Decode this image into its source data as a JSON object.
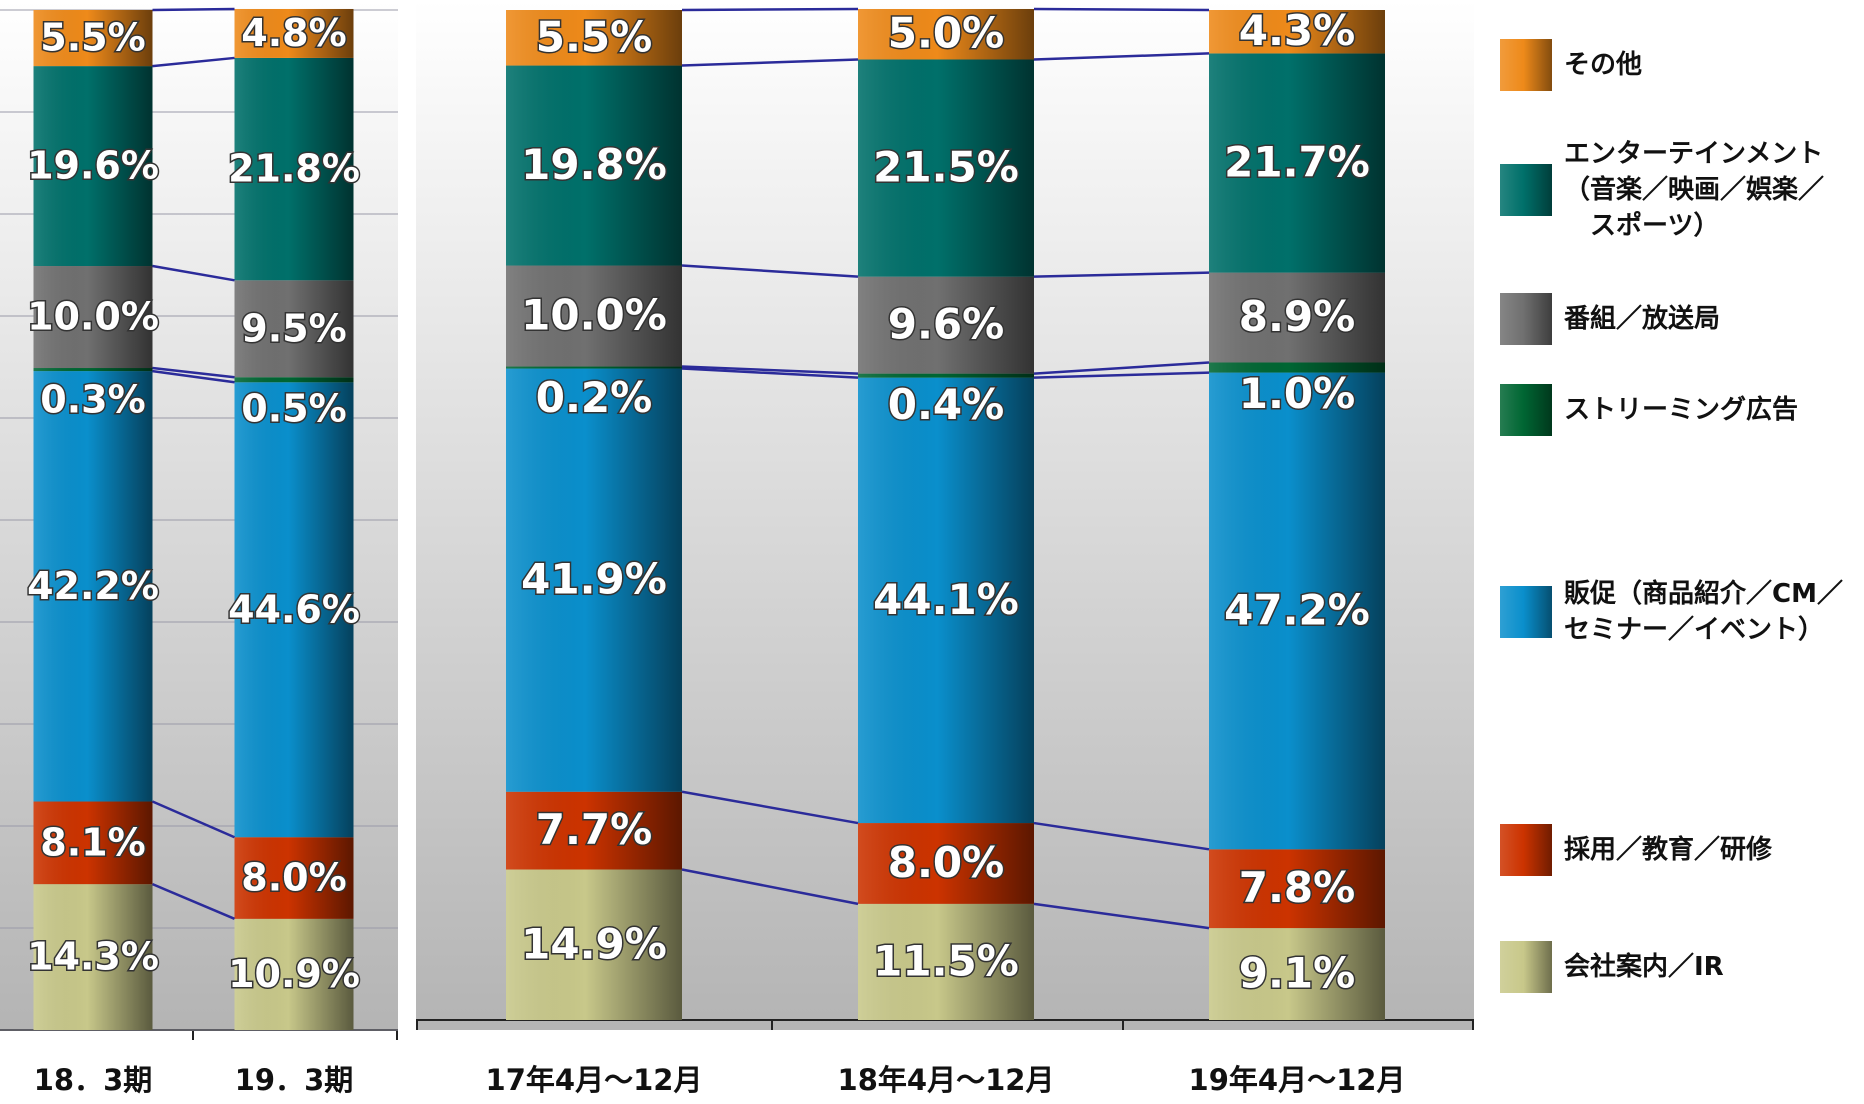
{
  "chart_data": [
    {
      "type": "bar",
      "stacked": true,
      "categories": [
        "18．3期",
        "19．3期"
      ],
      "ylim": [
        0,
        100
      ],
      "yticks": [
        0,
        10,
        20,
        30,
        40,
        50,
        60,
        70,
        80,
        90,
        100
      ],
      "grid": true,
      "series": [
        {
          "color": "#c8c88a",
          "values": [
            14.3,
            10.9
          ],
          "value_labels": [
            "14.3%",
            "10.9%"
          ]
        },
        {
          "color": "#cc3300",
          "values": [
            8.1,
            8.0
          ],
          "value_labels": [
            "8.1%",
            "8.0%"
          ]
        },
        {
          "color": "#0a8fcc",
          "values": [
            42.2,
            44.6
          ],
          "value_labels": [
            "42.2%",
            "44.6%"
          ]
        },
        {
          "color": "#006633",
          "values": [
            0.3,
            0.5
          ],
          "value_labels": [
            "0.3%",
            "0.5%"
          ]
        },
        {
          "color": "#707070",
          "values": [
            10.0,
            9.5
          ],
          "value_labels": [
            "10.0%",
            "9.5%"
          ]
        },
        {
          "color": "#00706a",
          "values": [
            19.6,
            21.8
          ],
          "value_labels": [
            "19.6%",
            "21.8%"
          ]
        },
        {
          "color": "#ee8a1a",
          "values": [
            5.5,
            4.8
          ],
          "value_labels": [
            "5.5%",
            "4.8%"
          ]
        }
      ]
    },
    {
      "type": "bar",
      "stacked": true,
      "categories": [
        "17年4月～12月",
        "18年4月～12月",
        "19年4月～12月"
      ],
      "ylim": [
        0,
        100
      ],
      "series": [
        {
          "name": "会社案内／IR",
          "color": "#c8c88a",
          "values": [
            14.9,
            11.5,
            9.1
          ],
          "value_labels": [
            "14.9%",
            "11.5%",
            "9.1%"
          ]
        },
        {
          "name": "採用／教育／研修",
          "color": "#cc3300",
          "values": [
            7.7,
            8.0,
            7.8
          ],
          "value_labels": [
            "7.7%",
            "8.0%",
            "7.8%"
          ]
        },
        {
          "name": "販促（商品紹介／CM／\nセミナー／イベント）",
          "color": "#0a8fcc",
          "values": [
            41.9,
            44.1,
            47.2
          ],
          "value_labels": [
            "41.9%",
            "44.1%",
            "47.2%"
          ]
        },
        {
          "name": "ストリーミング広告",
          "color": "#006633",
          "values": [
            0.2,
            0.4,
            1.0
          ],
          "value_labels": [
            "0.2%",
            "0.4%",
            "1.0%"
          ]
        },
        {
          "name": "番組／放送局",
          "color": "#707070",
          "values": [
            10.0,
            9.6,
            8.9
          ],
          "value_labels": [
            "10.0%",
            "9.6%",
            "8.9%"
          ]
        },
        {
          "name": "エンターテインメント\n（音楽／映画／娯楽／\n　スポーツ）",
          "color": "#00706a",
          "values": [
            19.8,
            21.5,
            21.7
          ],
          "value_labels": [
            "19.8%",
            "21.5%",
            "21.7%"
          ]
        },
        {
          "name": "その他",
          "color": "#ee8a1a",
          "values": [
            5.5,
            5.0,
            4.3
          ],
          "value_labels": [
            "5.5%",
            "5.0%",
            "4.3%"
          ]
        }
      ]
    }
  ]
}
